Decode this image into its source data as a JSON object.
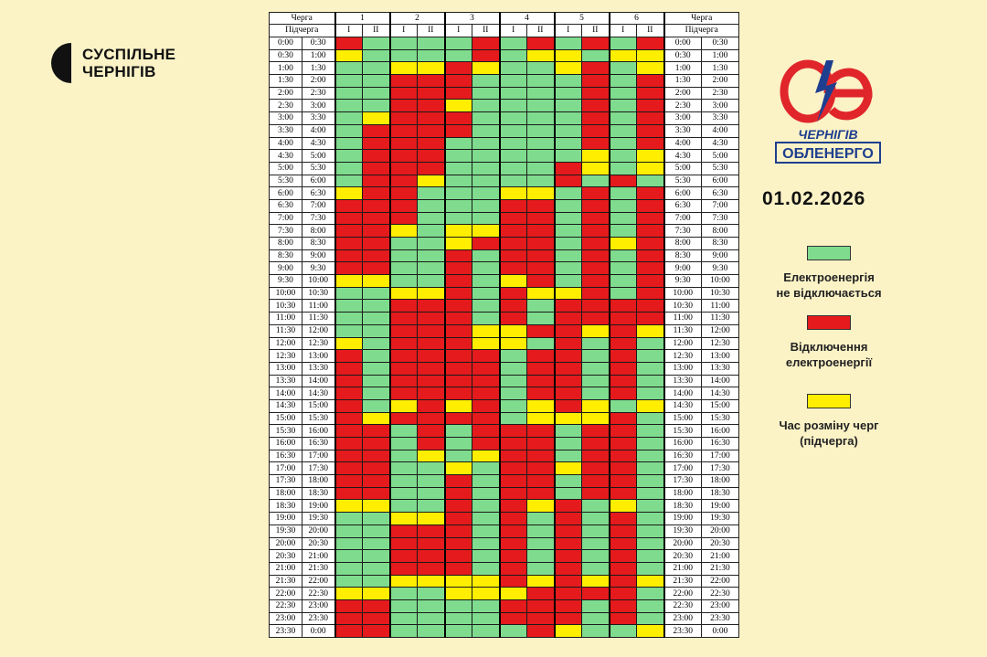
{
  "brand": {
    "line1": "СУСПІЛЬНЕ",
    "line2": "ЧЕРНІГІВ"
  },
  "logo": {
    "line1": "ЧЕРНІГІВ",
    "line2": "ОБЛЕНЕРГО"
  },
  "date": "01.02.2026",
  "colors": {
    "on": "#7fdc8e",
    "off": "#e41a1c",
    "switch": "#ffee00"
  },
  "legend": [
    {
      "key": "g",
      "color": "#7fdc8e",
      "line1": "Електроенергія",
      "line2": "не відключається"
    },
    {
      "key": "r",
      "color": "#e41a1c",
      "line1": "Відключення",
      "line2": "електроенергії"
    },
    {
      "key": "y",
      "color": "#ffee00",
      "line1": "Час розміну черг",
      "line2": "(підчерга)"
    }
  ],
  "table": {
    "queue_label": "Черга",
    "subqueue_label": "Підчерга",
    "queues": [
      "1",
      "2",
      "3",
      "4",
      "5",
      "6"
    ],
    "subqueues": [
      "I",
      "II"
    ],
    "rows": [
      {
        "from": "0:00",
        "to": "0:30",
        "cells": "rggggrgrgrgr"
      },
      {
        "from": "0:30",
        "to": "1:00",
        "cells": "yggggrgyygyy"
      },
      {
        "from": "1:00",
        "to": "1:30",
        "cells": "ggyyryggyrgy"
      },
      {
        "from": "1:30",
        "to": "2:00",
        "cells": "ggrrrggggrgr"
      },
      {
        "from": "2:00",
        "to": "2:30",
        "cells": "ggrrrggggrgr"
      },
      {
        "from": "2:30",
        "to": "3:00",
        "cells": "ggrryggggrgr"
      },
      {
        "from": "3:00",
        "to": "3:30",
        "cells": "gyrrrggggrgr"
      },
      {
        "from": "3:30",
        "to": "4:00",
        "cells": "grrrrggggrgr"
      },
      {
        "from": "4:00",
        "to": "4:30",
        "cells": "grrrgggggrgr"
      },
      {
        "from": "4:30",
        "to": "5:00",
        "cells": "grrrgggggygy"
      },
      {
        "from": "5:00",
        "to": "5:30",
        "cells": "grrrggggrygy"
      },
      {
        "from": "5:30",
        "to": "6:00",
        "cells": "grryggggrgrg"
      },
      {
        "from": "6:00",
        "to": "6:30",
        "cells": "yrrgggyygrgr"
      },
      {
        "from": "6:30",
        "to": "7:00",
        "cells": "rrrgggrrgrgr"
      },
      {
        "from": "7:00",
        "to": "7:30",
        "cells": "rrrgggrrgrgr"
      },
      {
        "from": "7:30",
        "to": "8:00",
        "cells": "rrygyyrrgrgr"
      },
      {
        "from": "8:00",
        "to": "8:30",
        "cells": "rrggyrrrgryr"
      },
      {
        "from": "8:30",
        "to": "9:00",
        "cells": "rrggrgrrgrgr"
      },
      {
        "from": "9:00",
        "to": "9:30",
        "cells": "rrggrgrrgrgr"
      },
      {
        "from": "9:30",
        "to": "10:00",
        "cells": "yyggrgyrgrgr"
      },
      {
        "from": "10:00",
        "to": "10:30",
        "cells": "ggyyrgryyrgr"
      },
      {
        "from": "10:30",
        "to": "11:00",
        "cells": "ggrrrgrgrrrr"
      },
      {
        "from": "11:00",
        "to": "11:30",
        "cells": "ggrrrgrgrrrr"
      },
      {
        "from": "11:30",
        "to": "12:00",
        "cells": "ggrrryyrryry"
      },
      {
        "from": "12:00",
        "to": "12:30",
        "cells": "ygrrryygrgrg"
      },
      {
        "from": "12:30",
        "to": "13:00",
        "cells": "rgrrrrgrrgrg"
      },
      {
        "from": "13:00",
        "to": "13:30",
        "cells": "rgrrrrgrrgrg"
      },
      {
        "from": "13:30",
        "to": "14:00",
        "cells": "rgrrrrgrrgrg"
      },
      {
        "from": "14:00",
        "to": "14:30",
        "cells": "rgrrrrgrrgrg"
      },
      {
        "from": "14:30",
        "to": "15:00",
        "cells": "rgyryrgyrygy"
      },
      {
        "from": "15:00",
        "to": "15:30",
        "cells": "ryrrrrgyyyrg"
      },
      {
        "from": "15:30",
        "to": "16:00",
        "cells": "rrgrgrrrgrrg"
      },
      {
        "from": "16:00",
        "to": "16:30",
        "cells": "rrgrgrrrgrrg"
      },
      {
        "from": "16:30",
        "to": "17:00",
        "cells": "rrgygyrrgrrg"
      },
      {
        "from": "17:00",
        "to": "17:30",
        "cells": "rrggygrryrrg"
      },
      {
        "from": "17:30",
        "to": "18:00",
        "cells": "rrggrgrrgrrg"
      },
      {
        "from": "18:00",
        "to": "18:30",
        "cells": "rrggrgrrgrrg"
      },
      {
        "from": "18:30",
        "to": "19:00",
        "cells": "yyggrgryrgyg"
      },
      {
        "from": "19:00",
        "to": "19:30",
        "cells": "ggyyrgrgrgrg"
      },
      {
        "from": "19:30",
        "to": "20:00",
        "cells": "ggrrrgrgrgrg"
      },
      {
        "from": "20:00",
        "to": "20:30",
        "cells": "ggrrrgrgrgrg"
      },
      {
        "from": "20:30",
        "to": "21:00",
        "cells": "ggrrrgrgrgrg"
      },
      {
        "from": "21:00",
        "to": "21:30",
        "cells": "ggrrrgrgrgrg"
      },
      {
        "from": "21:30",
        "to": "22:00",
        "cells": "ggyyyyryryry"
      },
      {
        "from": "22:00",
        "to": "22:30",
        "cells": "yyggyyyrrrrg"
      },
      {
        "from": "22:30",
        "to": "23:00",
        "cells": "rrggggrrrgrg"
      },
      {
        "from": "23:00",
        "to": "23:30",
        "cells": "rrggggrrrgrg"
      },
      {
        "from": "23:30",
        "to": "0:00",
        "cells": "rrgggggryggy"
      }
    ]
  }
}
